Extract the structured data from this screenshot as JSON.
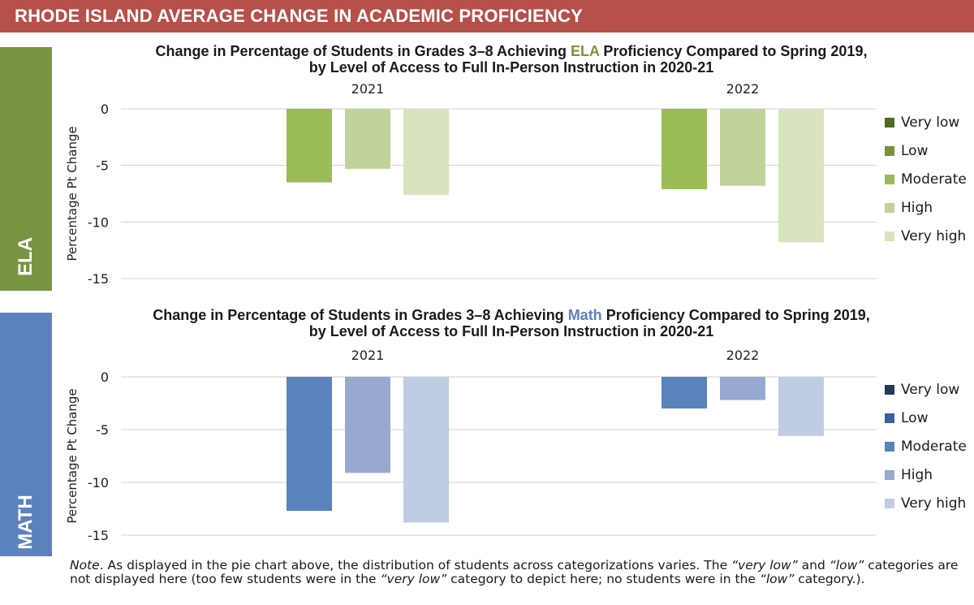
{
  "banner": {
    "title": "RHODE ISLAND AVERAGE CHANGE IN ACADEMIC PROFICIENCY"
  },
  "sections": [
    {
      "tab": "ELA",
      "color": "#7a9442"
    },
    {
      "tab": "MATH",
      "color": "#5b82be"
    }
  ],
  "note": {
    "lead": "Note",
    "part1": ". As displayed in the pie chart above, the distribution of students across categorizations varies. The ",
    "q1": "“very low”",
    "part2": " and ",
    "q2": "“low”",
    "part3": " categories are not displayed here (too few students were in the ",
    "q3": "“very low”",
    "part4": " category to depict here; no students were in the ",
    "q4": "“low”",
    "part5": " category.)."
  },
  "chart_data": [
    {
      "type": "bar",
      "title_pre": "Change in Percentage of Students in Grades 3–8 Achieving ",
      "title_subject": "ELA",
      "subject_color": "#7a9442",
      "title_post": " Proficiency Compared to Spring 2019,",
      "title_line2": "by Level of Access to Full In-Person Instruction in 2020-21",
      "ylabel": "Percentage Pt Change",
      "ylim": [
        -15,
        0
      ],
      "yticks": [
        0,
        -5,
        -10,
        -15
      ],
      "grid": true,
      "legend_position": "right",
      "categories": [
        "2021",
        "2022"
      ],
      "series": [
        {
          "name": "Very low",
          "color": "#4e6b2a",
          "values": [
            null,
            null
          ]
        },
        {
          "name": "Low",
          "color": "#76923c",
          "values": [
            null,
            null
          ]
        },
        {
          "name": "Moderate",
          "color": "#9bbb59",
          "values": [
            -6.5,
            -7.1
          ]
        },
        {
          "name": "High",
          "color": "#bfd39a",
          "values": [
            -5.3,
            -6.8
          ]
        },
        {
          "name": "Very high",
          "color": "#d8e4c0",
          "values": [
            -7.6,
            -11.8
          ]
        }
      ]
    },
    {
      "type": "bar",
      "title_pre": "Change in Percentage of Students in Grades 3–8 Achieving ",
      "title_subject": "Math",
      "subject_color": "#5b82be",
      "title_post": " Proficiency Compared to Spring 2019,",
      "title_line2": "by Level of Access to Full In-Person Instruction in 2020-21",
      "ylabel": "Percentage Pt Change",
      "ylim": [
        -15,
        0
      ],
      "yticks": [
        0,
        -5,
        -10,
        -15
      ],
      "grid": true,
      "legend_position": "right",
      "categories": [
        "2021",
        "2022"
      ],
      "series": [
        {
          "name": "Very low",
          "color": "#203864",
          "values": [
            null,
            null
          ]
        },
        {
          "name": "Low",
          "color": "#3a5f9e",
          "values": [
            null,
            null
          ]
        },
        {
          "name": "Moderate",
          "color": "#5a82bd",
          "values": [
            -12.7,
            -3.0
          ]
        },
        {
          "name": "High",
          "color": "#97a9d0",
          "values": [
            -9.1,
            -2.2
          ]
        },
        {
          "name": "Very high",
          "color": "#c0cce2",
          "values": [
            -13.8,
            -5.6
          ]
        }
      ]
    }
  ]
}
